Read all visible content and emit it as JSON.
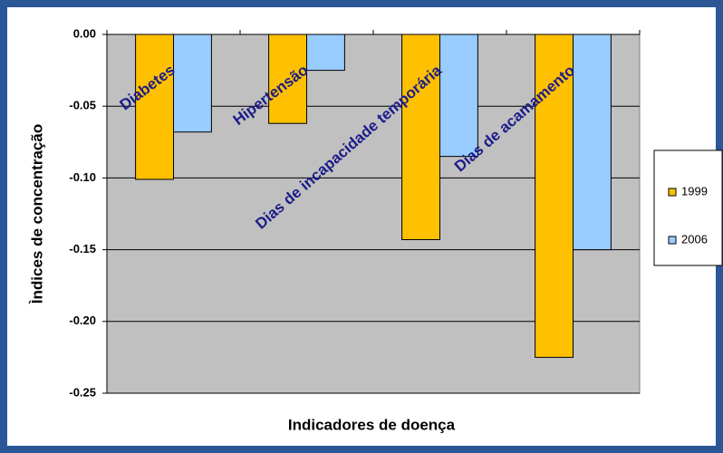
{
  "chart_data": {
    "type": "bar",
    "x_label": "Indicadores de doença",
    "y_label": "Ìndices de concentração",
    "categories": [
      "Diabetes",
      "Hipertensão",
      "Dias de incapacidade temporária",
      "Dias de acamamento"
    ],
    "series": [
      {
        "name": "1999",
        "color": "#ffc000",
        "values": [
          -0.101,
          -0.062,
          -0.143,
          -0.225
        ]
      },
      {
        "name": "2006",
        "color": "#99ccff",
        "values": [
          -0.068,
          -0.025,
          -0.085,
          -0.15
        ]
      }
    ],
    "ylim": [
      -0.25,
      0
    ],
    "yticks": [
      {
        "value": 0,
        "label": "0.00"
      },
      {
        "value": -0.05,
        "label": "-0.05"
      },
      {
        "value": -0.1,
        "label": "-0.10"
      },
      {
        "value": -0.15,
        "label": "-0.15"
      },
      {
        "value": -0.2,
        "label": "-0.20"
      },
      {
        "value": -0.25,
        "label": "-0.25"
      }
    ],
    "grid": true,
    "legend": "right"
  }
}
